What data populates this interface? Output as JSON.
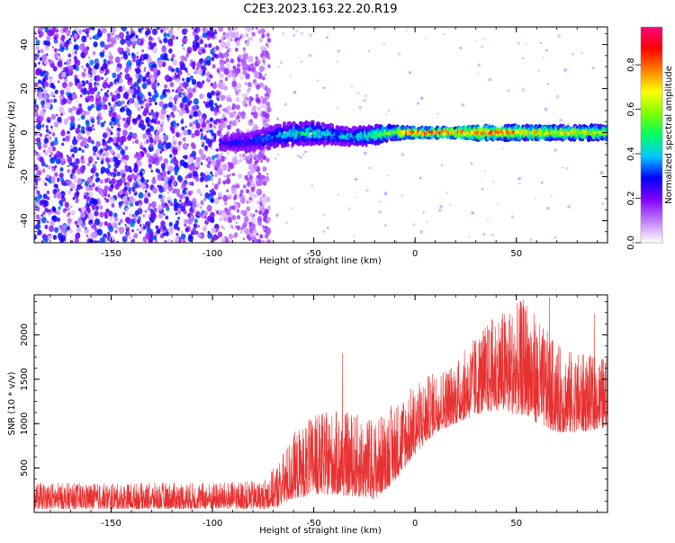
{
  "title": "C2E3.2023.163.22.20.R19",
  "chart_data": [
    {
      "type": "heatmap",
      "xlabel": "Height of straight line (km)",
      "ylabel": "Frequency (Hz)",
      "xlim": [
        -188,
        95
      ],
      "ylim": [
        -50,
        48
      ],
      "xticks": [
        -150,
        -100,
        -50,
        0,
        50
      ],
      "xtick_labels": [
        "-150",
        "-100",
        "-50",
        "0",
        "50"
      ],
      "yticks": [
        -40,
        -20,
        0,
        20,
        40
      ],
      "ytick_labels": [
        "-40",
        "-20",
        "0",
        "20",
        "40"
      ],
      "noise_region_x": [
        -188,
        -72
      ],
      "signal_band": {
        "x": [
          -96,
          -80,
          -65,
          -50,
          -40,
          -30,
          -20,
          -10,
          0,
          10,
          20,
          30,
          40,
          50,
          60,
          70,
          80,
          95
        ],
        "center_y": [
          -5,
          -4,
          -1,
          0,
          -1,
          -2,
          -1,
          0,
          0,
          0,
          0,
          0,
          0,
          0,
          0,
          0,
          0,
          0
        ],
        "half_width_y": [
          3,
          4,
          5,
          5,
          4,
          4,
          4,
          3,
          2,
          2,
          2,
          3,
          3,
          3,
          3,
          3,
          3,
          3
        ],
        "peak_amplitude": [
          0.3,
          0.35,
          0.45,
          0.5,
          0.45,
          0.45,
          0.55,
          0.7,
          0.95,
          0.95,
          0.95,
          0.9,
          0.9,
          0.85,
          0.8,
          0.75,
          0.75,
          0.75
        ]
      },
      "colorbar": {
        "label": "Normalized spectral amplitude",
        "range": [
          0,
          0.97
        ],
        "ticks": [
          0.0,
          0.2,
          0.4,
          0.6,
          0.8
        ],
        "tick_labels": [
          "0.0",
          "0.2",
          "0.4",
          "0.6",
          "0.8"
        ],
        "colors": [
          "#ffffff",
          "#c080ff",
          "#8000ff",
          "#0000ff",
          "#00c8ff",
          "#00ff60",
          "#80ff00",
          "#ffff00",
          "#ff8000",
          "#ff0000",
          "#ff0080"
        ]
      }
    },
    {
      "type": "line",
      "xlabel": "Height of straight line (km)",
      "ylabel": "SNR (10 * v/v)",
      "xlim": [
        -188,
        95
      ],
      "ylim": [
        0,
        2450
      ],
      "xticks": [
        -150,
        -100,
        -50,
        0,
        50
      ],
      "xtick_labels": [
        "-150",
        "-100",
        "-50",
        "0",
        "50"
      ],
      "yticks": [
        500,
        1000,
        1500,
        2000
      ],
      "ytick_labels": [
        "500",
        "1000",
        "1500",
        "2000"
      ],
      "color": "#e83030",
      "envelope": {
        "x": [
          -188,
          -150,
          -120,
          -100,
          -75,
          -68,
          -60,
          -50,
          -40,
          -30,
          -20,
          -10,
          0,
          10,
          20,
          30,
          40,
          50,
          55,
          60,
          70,
          80,
          95
        ],
        "baseline": [
          40,
          40,
          40,
          40,
          40,
          60,
          150,
          200,
          200,
          180,
          150,
          350,
          650,
          900,
          1000,
          1100,
          1150,
          1100,
          1100,
          1000,
          900,
          900,
          950
        ],
        "amplitude": [
          300,
          290,
          300,
          300,
          320,
          500,
          750,
          900,
          950,
          950,
          900,
          900,
          800,
          700,
          700,
          900,
          1100,
          1250,
          1350,
          1200,
          1000,
          900,
          800
        ]
      }
    }
  ]
}
